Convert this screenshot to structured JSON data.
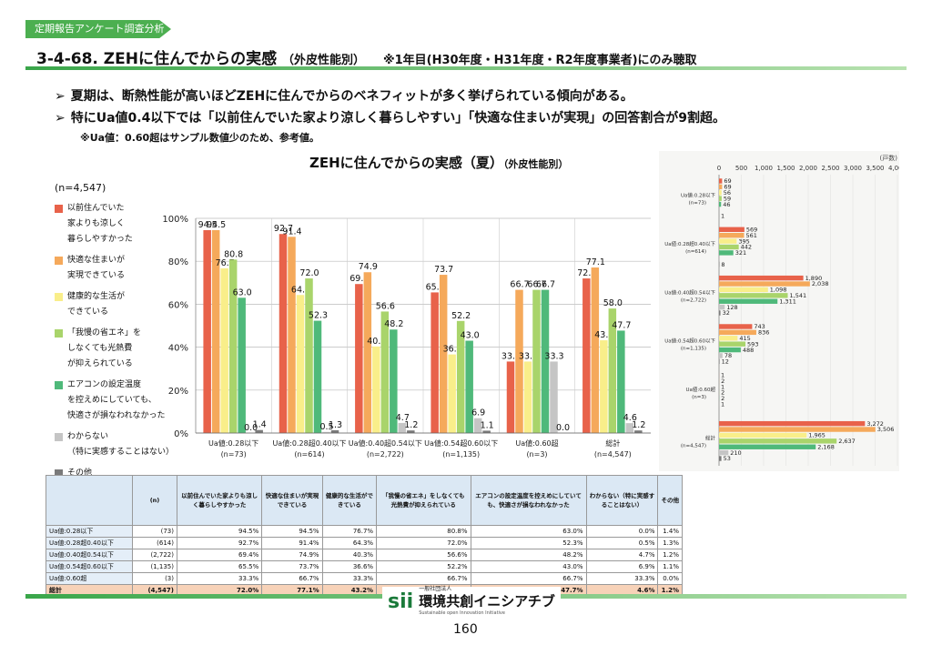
{
  "header": {
    "tag": "定期報告アンケート調査分析",
    "title_main": "3-4-68. ZEHに住んでからの実感",
    "title_sub": "（外皮性能別）",
    "title_note": "※1年目(H30年度・H31年度・R2年度事業者)にのみ聴取"
  },
  "bullets": [
    "夏期は、断熱性能が高いほどZEHに住んでからのベネフィットが多く挙げられている傾向がある。",
    "特にUa値0.4以下では「以前住んでいた家より涼しく暮らしやすい」「快適な住まいが実現」の回答割合が9割超。"
  ],
  "bullet_mark": "➢",
  "note": "※Ua値：0.60超はサンプル数値少のため、参考値。",
  "chart_data": [
    {
      "type": "bar",
      "title": "ZEHに住んでからの実感（夏）",
      "subtitle": "（外皮性能別）",
      "n_label": "(n=4,547)",
      "categories": [
        "Ua値:0.28以下",
        "Ua値:0.28超0.40以下",
        "Ua値:0.40超0.54以下",
        "Ua値:0.54超0.60以下",
        "Ua値:0.60超",
        "総計"
      ],
      "category_n": [
        "(n=73)",
        "(n=614)",
        "(n=2,722)",
        "(n=1,135)",
        "(n=3)",
        "(n=4,547)"
      ],
      "yticks": [
        "0%",
        "20%",
        "40%",
        "60%",
        "80%",
        "100%"
      ],
      "ylim": [
        0,
        100
      ],
      "grid": true,
      "legend_position": "left",
      "series": [
        {
          "name": "以前住んでいた\n家よりも涼しく\n暮らしやすかった",
          "color": "#e8624a",
          "values": [
            94.5,
            92.7,
            69.4,
            65.5,
            33.3,
            72.0
          ]
        },
        {
          "name": "快適な住まいが\n実現できている",
          "color": "#f5a95b",
          "values": [
            94.5,
            91.4,
            74.9,
            73.7,
            66.7,
            77.1
          ]
        },
        {
          "name": "健康的な生活が\nできている",
          "color": "#f9ee8a",
          "values": [
            76.7,
            64.3,
            40.3,
            36.6,
            33.3,
            43.2
          ]
        },
        {
          "name": "「我慢の省エネ」を\nしなくても光熱費\nが抑えられている",
          "color": "#a9d46b",
          "values": [
            80.8,
            72.0,
            56.6,
            52.2,
            66.7,
            58.0
          ]
        },
        {
          "name": "エアコンの設定温度\nを控えめにしていても、\n快適さが損なわれなかった",
          "color": "#4fb97a",
          "values": [
            63.0,
            52.3,
            48.2,
            43.0,
            66.7,
            47.7
          ]
        },
        {
          "name": "わからない\n（特に実感することはない）",
          "color": "#c5c5c5",
          "values": [
            0.0,
            0.5,
            4.7,
            6.9,
            33.3,
            4.6
          ]
        },
        {
          "name": "その他",
          "color": "#7a7a7a",
          "values": [
            1.4,
            1.3,
            1.2,
            1.1,
            0.0,
            1.2
          ]
        }
      ]
    },
    {
      "type": "bar",
      "orientation": "horizontal",
      "unit_label": "(戸数)",
      "xticks": [
        "0",
        "500",
        "1,000",
        "1,500",
        "2,000",
        "2,500",
        "3,000",
        "3,500",
        "4,000"
      ],
      "xlim": [
        0,
        4000
      ],
      "categories": [
        "Ua値:0.28以下",
        "Ua値:0.28超0.40以下",
        "Ua値:0.40超0.54以下",
        "Ua値:0.54超0.60以下",
        "Ua値:0.60超",
        "総計"
      ],
      "category_n": [
        "(n=73)",
        "(n=614)",
        "(n=2,722)",
        "(n=1,135)",
        "(n=3)",
        "(n=4,547)"
      ],
      "series_colors": [
        "#e8624a",
        "#f5a95b",
        "#f9ee8a",
        "#a9d46b",
        "#4fb97a",
        "#c5c5c5",
        "#7a7a7a"
      ],
      "values": [
        [
          69,
          69,
          56,
          59,
          46,
          0,
          1
        ],
        [
          569,
          561,
          395,
          442,
          321,
          3,
          8
        ],
        [
          1890,
          2038,
          1098,
          1541,
          1311,
          128,
          32
        ],
        [
          743,
          836,
          415,
          593,
          488,
          78,
          12
        ],
        [
          1,
          2,
          1,
          2,
          2,
          1,
          0
        ],
        [
          3272,
          3506,
          1965,
          2637,
          2168,
          210,
          53
        ]
      ],
      "labels": [
        [
          "69",
          "69",
          "56",
          "59",
          "46",
          "",
          "1"
        ],
        [
          "569",
          "561",
          "395",
          "442",
          "321",
          "",
          "8"
        ],
        [
          "1,890",
          "2,038",
          "1,098",
          "1,541",
          "1,311",
          "128",
          "32"
        ],
        [
          "743",
          "836",
          "415",
          "593",
          "488",
          "78",
          "12"
        ],
        [
          "1",
          "2",
          "1",
          "2",
          "2",
          "1",
          ""
        ],
        [
          "3,272",
          "3,506",
          "1,965",
          "2,637",
          "2,168",
          "210",
          "53"
        ]
      ]
    }
  ],
  "table": {
    "headers": [
      "",
      "(n)",
      "以前住んでいた家よりも涼しく暮らしやすかった",
      "快適な住まいが実現できている",
      "健康的な生活ができている",
      "「我慢の省エネ」をしなくても光熱費が抑えられている",
      "エアコンの設定温度を控えめにしていても、快適さが損なわれなかった",
      "わからない（特に実感することはない）",
      "その他"
    ],
    "rows": [
      [
        "Ua値:0.28以下",
        "(73)",
        "94.5%",
        "94.5%",
        "76.7%",
        "80.8%",
        "63.0%",
        "0.0%",
        "1.4%"
      ],
      [
        "Ua値:0.28超0.40以下",
        "(614)",
        "92.7%",
        "91.4%",
        "64.3%",
        "72.0%",
        "52.3%",
        "0.5%",
        "1.3%"
      ],
      [
        "Ua値:0.40超0.54以下",
        "(2,722)",
        "69.4%",
        "74.9%",
        "40.3%",
        "56.6%",
        "48.2%",
        "4.7%",
        "1.2%"
      ],
      [
        "Ua値:0.54超0.60以下",
        "(1,135)",
        "65.5%",
        "73.7%",
        "36.6%",
        "52.2%",
        "43.0%",
        "6.9%",
        "1.1%"
      ],
      [
        "Ua値:0.60超",
        "(3)",
        "33.3%",
        "66.7%",
        "33.3%",
        "66.7%",
        "66.7%",
        "33.3%",
        "0.0%"
      ]
    ],
    "total": [
      "総計",
      "(4,547)",
      "72.0%",
      "77.1%",
      "43.2%",
      "58.0%",
      "47.7%",
      "4.6%",
      "1.2%"
    ]
  },
  "footer": {
    "logo_mark": "sii",
    "org_small": "一般社団法人",
    "org_name": "環境共創イニシアチブ",
    "org_en": "Sustainable open Innovation Initiative",
    "page": "160"
  }
}
